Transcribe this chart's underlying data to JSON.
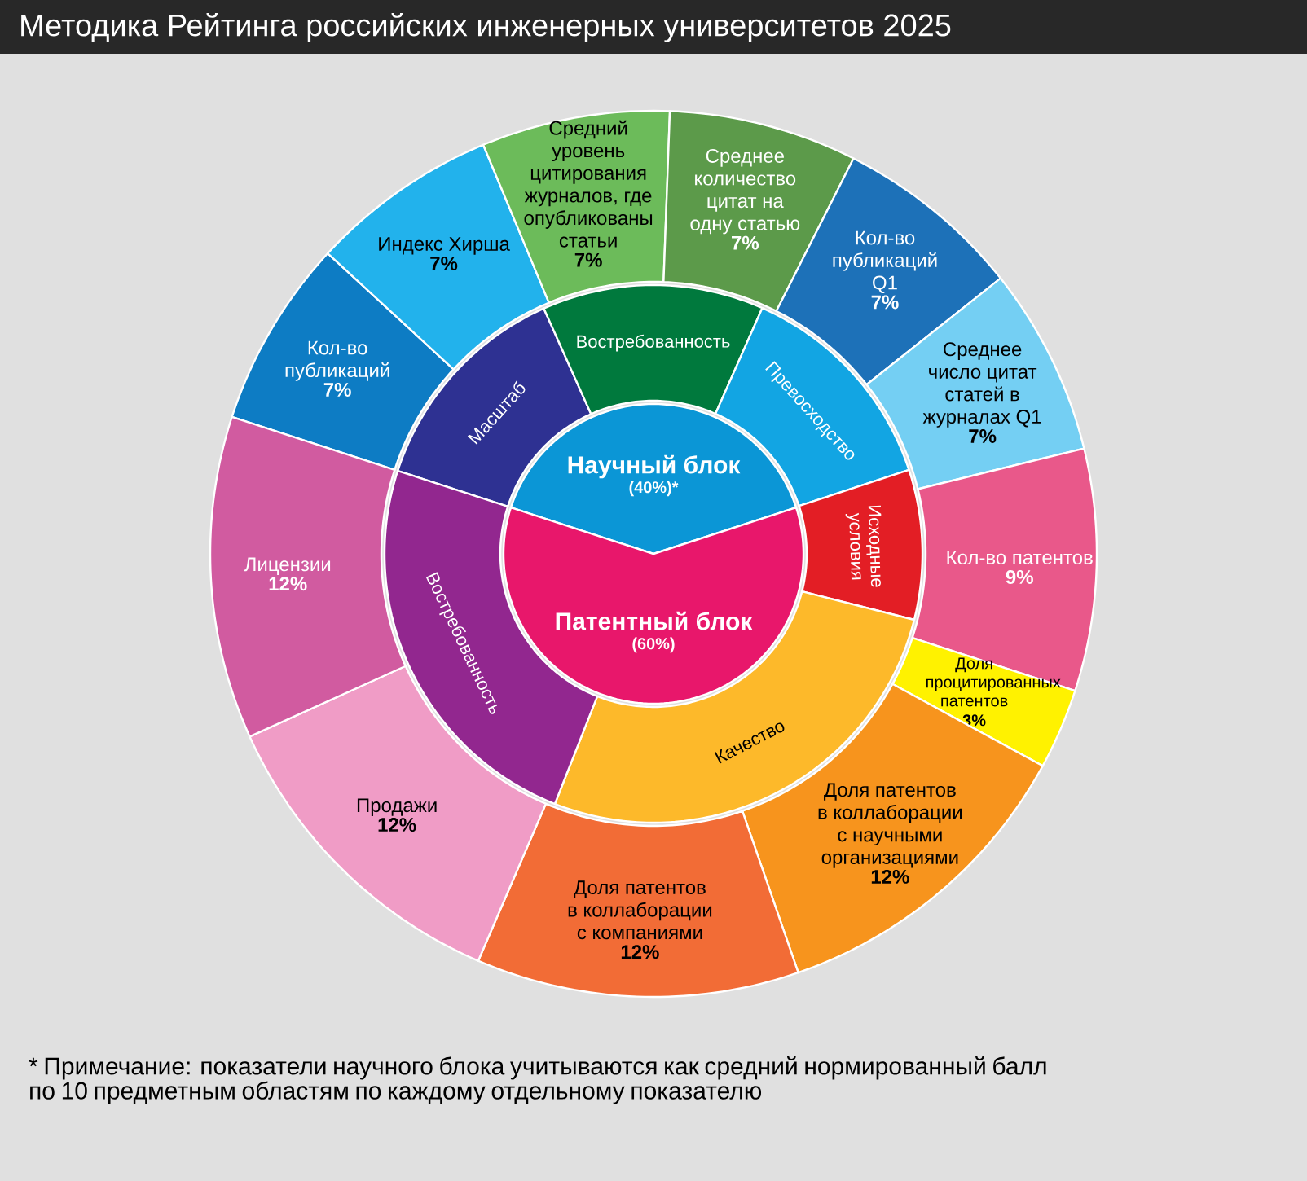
{
  "chart_data": [
    {
      "type": "pie",
      "title": "Методика Рейтинга российских инженерных университетов 2025",
      "categories": [
        "Научный блок",
        "Патентный блок"
      ],
      "values": [
        40,
        60
      ],
      "colors": [
        "#0b96d6",
        "#e8176b"
      ],
      "value_labels": [
        "(40%)*",
        "(60%)"
      ],
      "annotations": [
        "* Примечание: показатели научного блока учитываются как средний нормированный балл по 10 предметным областям по каждому отдельному показателю"
      ]
    },
    {
      "type": "donut",
      "categories": [
        "Масштаб",
        "Востребованность",
        "Превосходство",
        "Исходные условия",
        "Качество",
        "Востребованность"
      ],
      "values": [
        13.3,
        13.3,
        13.3,
        9,
        27,
        24
      ],
      "colors": [
        "#2e3192",
        "#00793d",
        "#12a5e3",
        "#e31e25",
        "#fdb92a",
        "#92278f"
      ]
    },
    {
      "type": "donut",
      "categories": [
        "Кол-во публикаций",
        "Индекс Хирша",
        "Средний уровень цитирования журналов, где опубликованы статьи",
        "Среднее количество цитат на одну статью",
        "Кол-во публикаций Q1",
        "Среднее число цитат статей в журналах Q1",
        "Кол-во патентов",
        "Доля процитированных патентов",
        "Доля патентов в коллаборации с научными организациями",
        "Доля патентов в коллаборации с компаниями",
        "Продажи",
        "Лицензии"
      ],
      "values": [
        7,
        7,
        7,
        7,
        7,
        7,
        9,
        3,
        12,
        12,
        12,
        12
      ],
      "colors": [
        "#0d7cc4",
        "#22b2ec",
        "#6cbb5a",
        "#5c9a4a",
        "#1d71b8",
        "#74cff3",
        "#e9588a",
        "#fff200",
        "#f7941d",
        "#f26c36",
        "#f09cc6",
        "#d15ba0"
      ],
      "value_labels": [
        "7%",
        "7%",
        "7%",
        "7%",
        "7%",
        "7%",
        "9%",
        "3%",
        "12%",
        "12%",
        "12%",
        "12%"
      ]
    }
  ]
}
